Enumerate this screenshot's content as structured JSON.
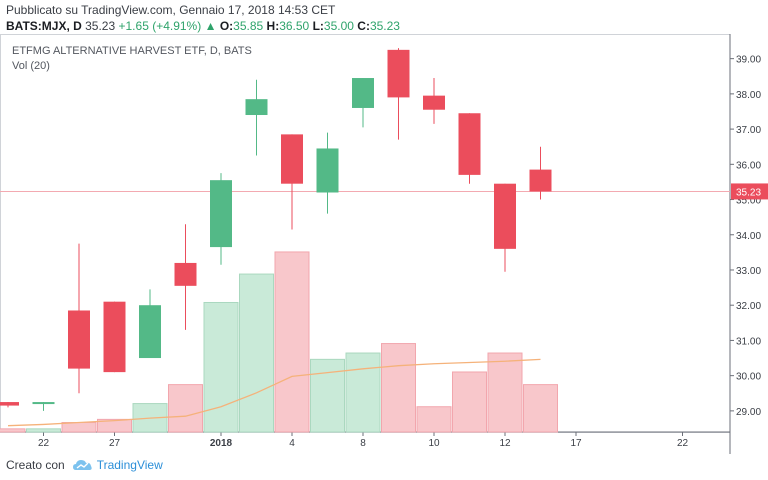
{
  "header": {
    "published": "Pubblicato su TradingView.com, Gennaio 17, 2018 14:53 CET",
    "symbol": "BATS:MJX, D",
    "last": "35.23",
    "change": "+1.65 (+4.91%)",
    "o_label": "O:",
    "o": "35.85",
    "h_label": "H:",
    "h": "36.50",
    "l_label": "L:",
    "l": "35.00",
    "c_label": "C:",
    "c": "35.23"
  },
  "legend": {
    "title": "ETFMG ALTERNATIVE HARVEST ETF, D, BATS",
    "vol": "Vol (20)"
  },
  "footer": {
    "created": "Creato con",
    "brand": "TradingView"
  },
  "colors": {
    "up": "#53b987",
    "down": "#eb4d5c",
    "ma": "#f5b27a",
    "last": "#eb4d5c"
  },
  "chart_data": {
    "type": "candlestick",
    "title": "ETFMG ALTERNATIVE HARVEST ETF, D, BATS",
    "ylim": [
      28.4,
      39.7
    ],
    "y_ticks": [
      "29.00",
      "30.00",
      "31.00",
      "32.00",
      "33.00",
      "34.00",
      "35.00",
      "36.00",
      "37.00",
      "38.00",
      "39.00"
    ],
    "x_ticks": [
      {
        "label": "22",
        "slot": 1
      },
      {
        "label": "27",
        "slot": 3
      },
      {
        "label": "2018",
        "slot": 6,
        "bold": true
      },
      {
        "label": "4",
        "slot": 8
      },
      {
        "label": "8",
        "slot": 10
      },
      {
        "label": "10",
        "slot": 12
      },
      {
        "label": "12",
        "slot": 14
      },
      {
        "label": "17",
        "slot": 16
      },
      {
        "label": "22",
        "slot": 19
      }
    ],
    "last_price": 35.23,
    "last_price_label": "35.23",
    "candles": [
      {
        "o": 29.25,
        "h": 29.25,
        "l": 29.1,
        "c": 29.15,
        "v": 0.05
      },
      {
        "o": 29.2,
        "h": 29.25,
        "l": 29.0,
        "c": 29.25,
        "v": 0.05
      },
      {
        "o": 31.85,
        "h": 33.75,
        "l": 29.5,
        "c": 30.2,
        "v": 0.15
      },
      {
        "o": 32.1,
        "h": 32.1,
        "l": 30.1,
        "c": 30.1,
        "v": 0.2
      },
      {
        "o": 30.5,
        "h": 32.45,
        "l": 30.5,
        "c": 32.0,
        "v": 0.45
      },
      {
        "o": 33.2,
        "h": 34.3,
        "l": 31.3,
        "c": 32.55,
        "v": 0.75
      },
      {
        "o": 33.65,
        "h": 35.75,
        "l": 33.15,
        "c": 35.55,
        "v": 2.05
      },
      {
        "o": 37.4,
        "h": 38.4,
        "l": 36.25,
        "c": 37.85,
        "v": 2.5
      },
      {
        "o": 36.85,
        "h": 36.85,
        "l": 34.15,
        "c": 35.45,
        "v": 2.85
      },
      {
        "o": 35.2,
        "h": 36.9,
        "l": 34.6,
        "c": 36.45,
        "v": 1.15
      },
      {
        "o": 37.6,
        "h": 38.45,
        "l": 37.05,
        "c": 38.45,
        "v": 1.25
      },
      {
        "o": 39.25,
        "h": 39.3,
        "l": 36.7,
        "c": 37.9,
        "v": 1.4
      },
      {
        "o": 37.95,
        "h": 38.45,
        "l": 37.15,
        "c": 37.55,
        "v": 0.4
      },
      {
        "o": 37.45,
        "h": 37.45,
        "l": 35.45,
        "c": 35.7,
        "v": 0.95
      },
      {
        "o": 35.45,
        "h": 35.45,
        "l": 32.95,
        "c": 33.6,
        "v": 1.25
      },
      {
        "o": 35.85,
        "h": 36.5,
        "l": 35.0,
        "c": 35.23,
        "v": 0.75
      }
    ],
    "volume_ma": [
      0.1,
      0.12,
      0.15,
      0.18,
      0.22,
      0.25,
      0.4,
      0.62,
      0.88,
      0.94,
      1.0,
      1.05,
      1.08,
      1.1,
      1.12,
      1.15
    ],
    "volume_ylim": [
      0,
      6.3
    ]
  }
}
